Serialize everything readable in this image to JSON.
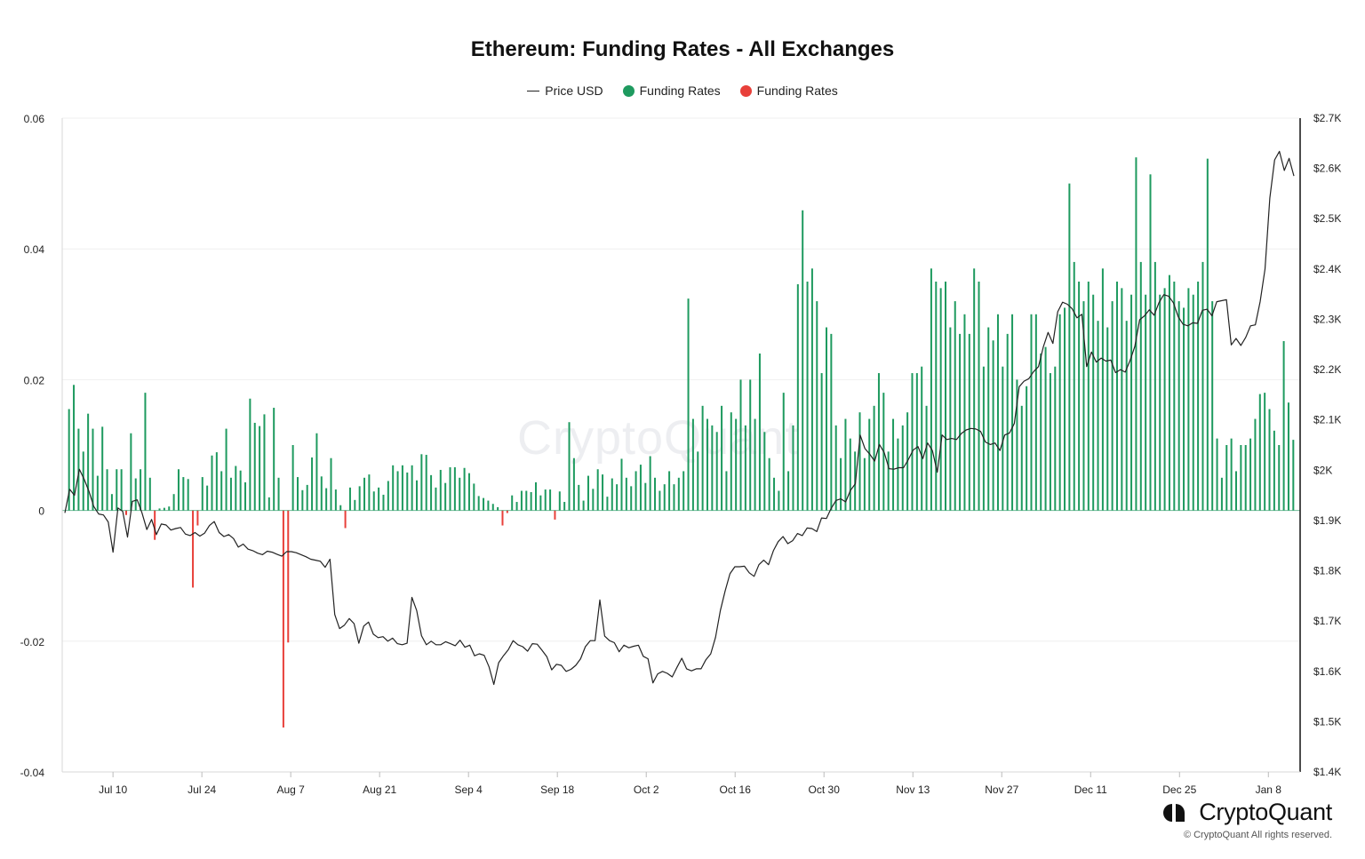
{
  "chart_data": {
    "type": "bar",
    "title": "Ethereum: Funding Rates - All Exchanges",
    "legend": [
      {
        "label": "Price USD",
        "kind": "line",
        "color": "#222222"
      },
      {
        "label": "Funding Rates",
        "kind": "dot",
        "color": "#1e9a5f"
      },
      {
        "label": "Funding Rates",
        "kind": "dot",
        "color": "#e8403a"
      }
    ],
    "legend_position": "top-center",
    "colors": {
      "positive": "#1e9a5f",
      "negative": "#e8403a",
      "price": "#222222"
    },
    "x_range": [
      "2023-07-02",
      "2024-01-13"
    ],
    "x_ticks": [
      "Jul 10",
      "Jul 24",
      "Aug 7",
      "Aug 21",
      "Sep 4",
      "Sep 18",
      "Oct 2",
      "Oct 16",
      "Oct 30",
      "Nov 13",
      "Nov 27",
      "Dec 11",
      "Dec 25",
      "Jan 8"
    ],
    "y_left": {
      "range": [
        -0.04,
        0.06
      ],
      "ticks": [
        "0.06",
        "0.04",
        "0.02",
        "0",
        "-0.02",
        "-0.04"
      ]
    },
    "y_right": {
      "range": [
        1400,
        2700
      ],
      "ticks": [
        "$2.7K",
        "$2.6K",
        "$2.5K",
        "$2.4K",
        "$2.3K",
        "$2.2K",
        "$2.1K",
        "$2K",
        "$1.9K",
        "$1.8K",
        "$1.7K",
        "$1.6K",
        "$1.5K",
        "$1.4K"
      ]
    },
    "grid": true,
    "funding_rates": [
      0.0155,
      0.0192,
      0.0125,
      0.009,
      0.0148,
      0.0125,
      0.0053,
      0.0128,
      0.0063,
      0.0025,
      0.0063,
      0.0063,
      -0.0007,
      0.0118,
      0.0049,
      0.0063,
      0.018,
      0.005,
      -0.0045,
      0.0003,
      0.0004,
      0.0006,
      0.0025,
      0.0063,
      0.0051,
      0.0048,
      -0.0118,
      -0.0023,
      0.0051,
      0.0038,
      0.0084,
      0.0089,
      0.006,
      0.0125,
      0.005,
      0.0068,
      0.0061,
      0.0043,
      0.0171,
      0.0134,
      0.0129,
      0.0147,
      0.002,
      0.0157,
      0.005,
      -0.0332,
      -0.0202,
      0.01,
      0.0051,
      0.0031,
      0.0039,
      0.0081,
      0.0118,
      0.0052,
      0.0034,
      0.008,
      0.0032,
      0.0008,
      -0.0027,
      0.0035,
      0.0016,
      0.0037,
      0.005,
      0.0055,
      0.0029,
      0.0035,
      0.0024,
      0.0045,
      0.0069,
      0.006,
      0.0069,
      0.0058,
      0.0069,
      0.0046,
      0.0086,
      0.0085,
      0.0054,
      0.0035,
      0.0062,
      0.0042,
      0.0066,
      0.0066,
      0.005,
      0.0065,
      0.0057,
      0.0041,
      0.0022,
      0.0019,
      0.0015,
      0.001,
      0.0005,
      -0.0023,
      -0.0004,
      0.0023,
      0.0013,
      0.003,
      0.003,
      0.0028,
      0.0043,
      0.0023,
      0.0032,
      0.0032,
      -0.0014,
      0.0029,
      0.0013,
      0.0135,
      0.008,
      0.0039,
      0.0015,
      0.0053,
      0.0033,
      0.0063,
      0.0055,
      0.0021,
      0.0049,
      0.004,
      0.0079,
      0.005,
      0.0037,
      0.006,
      0.007,
      0.0042,
      0.0083,
      0.005,
      0.003,
      0.004,
      0.006,
      0.004,
      0.005,
      0.006,
      0.0324,
      0.014,
      0.009,
      0.016,
      0.014,
      0.013,
      0.012,
      0.016,
      0.006,
      0.015,
      0.014,
      0.02,
      0.013,
      0.02,
      0.014,
      0.024,
      0.012,
      0.008,
      0.005,
      0.003,
      0.018,
      0.006,
      0.013,
      0.0346,
      0.0459,
      0.035,
      0.037,
      0.032,
      0.021,
      0.028,
      0.027,
      0.013,
      0.008,
      0.014,
      0.011,
      0.009,
      0.015,
      0.008,
      0.014,
      0.016,
      0.021,
      0.018,
      0.009,
      0.014,
      0.011,
      0.013,
      0.015,
      0.021,
      0.021,
      0.022,
      0.016,
      0.037,
      0.035,
      0.034,
      0.035,
      0.028,
      0.032,
      0.027,
      0.03,
      0.027,
      0.037,
      0.035,
      0.022,
      0.028,
      0.026,
      0.03,
      0.022,
      0.027,
      0.03,
      0.02,
      0.016,
      0.019,
      0.03,
      0.03,
      0.024,
      0.025,
      0.021,
      0.022,
      0.03,
      0.031,
      0.05,
      0.038,
      0.035,
      0.032,
      0.035,
      0.033,
      0.029,
      0.037,
      0.028,
      0.032,
      0.035,
      0.034,
      0.029,
      0.033,
      0.054,
      0.038,
      0.033,
      0.0514,
      0.038,
      0.033,
      0.034,
      0.036,
      0.035,
      0.032,
      0.031,
      0.034,
      0.033,
      0.035,
      0.038,
      0.0538,
      0.032,
      0.011,
      0.005,
      0.01,
      0.011,
      0.006,
      0.01,
      0.01,
      0.011,
      0.014,
      0.0178,
      0.018,
      0.0155,
      0.0122,
      0.01,
      0.0259,
      0.0165,
      0.0108
    ],
    "price_usd": [
      1915,
      1962,
      1950,
      2002,
      1982,
      1958,
      1928,
      1913,
      1911,
      1897,
      1837,
      1925,
      1918,
      1867,
      1938,
      1941,
      1915,
      1882,
      1902,
      1872,
      1893,
      1891,
      1881,
      1884,
      1886,
      1873,
      1870,
      1876,
      1869,
      1875,
      1890,
      1898,
      1876,
      1868,
      1872,
      1864,
      1847,
      1853,
      1843,
      1840,
      1835,
      1832,
      1839,
      1837,
      1833,
      1829,
      1838,
      1838,
      1836,
      1832,
      1828,
      1823,
      1821,
      1819,
      1807,
      1823,
      1713,
      1685,
      1692,
      1705,
      1695,
      1656,
      1690,
      1698,
      1674,
      1667,
      1669,
      1660,
      1666,
      1655,
      1653,
      1656,
      1747,
      1721,
      1671,
      1653,
      1660,
      1653,
      1653,
      1659,
      1655,
      1651,
      1662,
      1648,
      1652,
      1631,
      1635,
      1632,
      1609,
      1574,
      1617,
      1631,
      1643,
      1661,
      1653,
      1649,
      1640,
      1655,
      1654,
      1642,
      1629,
      1603,
      1614,
      1612,
      1600,
      1604,
      1612,
      1625,
      1649,
      1661,
      1661,
      1742,
      1670,
      1661,
      1657,
      1639,
      1652,
      1647,
      1650,
      1652,
      1630,
      1625,
      1577,
      1595,
      1600,
      1596,
      1589,
      1608,
      1626,
      1605,
      1601,
      1605,
      1605,
      1623,
      1635,
      1668,
      1721,
      1760,
      1794,
      1808,
      1808,
      1809,
      1796,
      1789,
      1812,
      1821,
      1812,
      1840,
      1858,
      1868,
      1854,
      1860,
      1874,
      1870,
      1885,
      1884,
      1878,
      1905,
      1904,
      1924,
      1940,
      1943,
      1937,
      1960,
      1973,
      2070,
      2043,
      2032,
      2018,
      2051,
      2035,
      2003,
      2002,
      2005,
      2005,
      2021,
      2040,
      2047,
      2023,
      2054,
      2039,
      1996,
      2070,
      2061,
      2063,
      2061,
      2073,
      2080,
      2083,
      2082,
      2077,
      2056,
      2051,
      2054,
      2039,
      2070,
      2074,
      2093,
      2166,
      2177,
      2182,
      2196,
      2206,
      2245,
      2274,
      2252,
      2315,
      2334,
      2330,
      2321,
      2303,
      2310,
      2206,
      2235,
      2215,
      2223,
      2217,
      2219,
      2194,
      2200,
      2195,
      2218,
      2246,
      2299,
      2307,
      2319,
      2308,
      2333,
      2349,
      2346,
      2333,
      2305,
      2290,
      2287,
      2293,
      2292,
      2318,
      2320,
      2307,
      2335,
      2337,
      2339,
      2249,
      2262,
      2248,
      2264,
      2287,
      2289,
      2335,
      2400,
      2541,
      2617,
      2634,
      2596,
      2620,
      2585
    ],
    "watermark": "CryptoQuant",
    "brand": "CryptoQuant",
    "copyright": "© CryptoQuant All rights reserved."
  }
}
